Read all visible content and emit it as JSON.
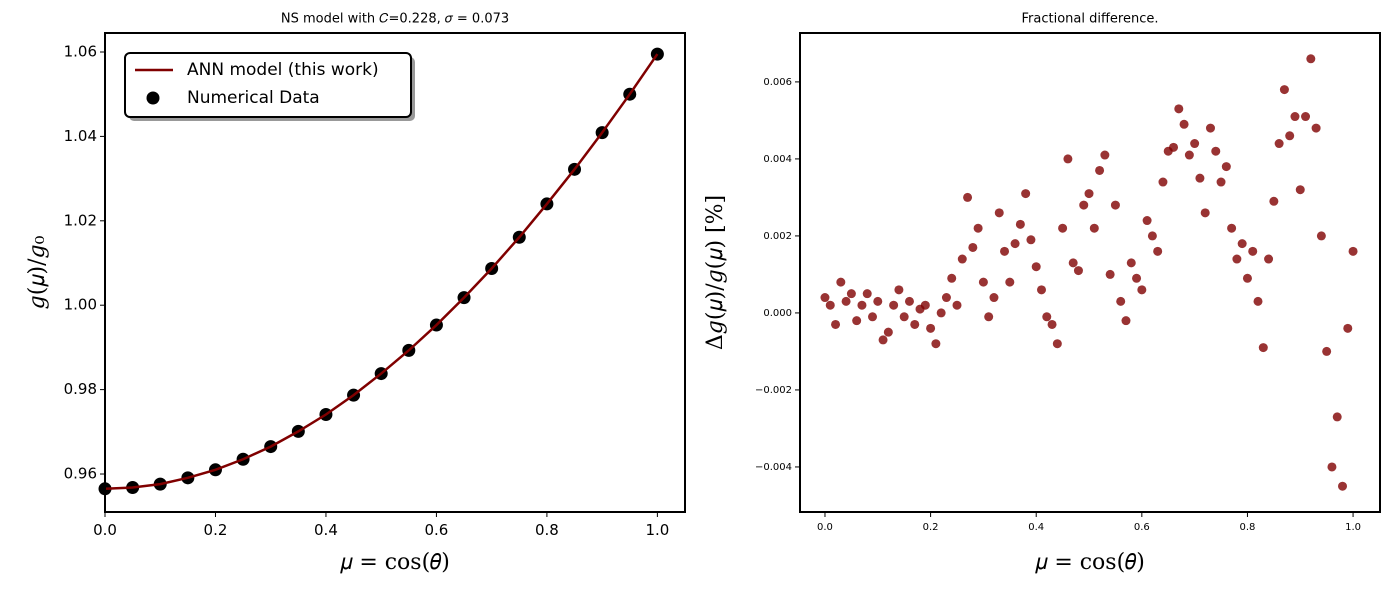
{
  "chart_data": [
    {
      "type": "line",
      "title": "NS model with 𝐶=0.228, 𝜎 = 0.073",
      "xlabel": "𝜇 = cos(𝜃)",
      "ylabel": "𝑔(𝜇)/𝑔₀",
      "legend": "upper left",
      "x": [
        0,
        0.05,
        0.1,
        0.15,
        0.2,
        0.25,
        0.3,
        0.35,
        0.4,
        0.45,
        0.5,
        0.55,
        0.6,
        0.65,
        0.7,
        0.75,
        0.8,
        0.85,
        0.9,
        0.95,
        1.0
      ],
      "series": [
        {
          "name": "ANN model (this work)",
          "type": "line",
          "color": "#800000",
          "values": [
            0.9565,
            0.9568,
            0.9576,
            0.9591,
            0.961,
            0.9635,
            0.9665,
            0.9701,
            0.9741,
            0.9787,
            0.9838,
            0.9893,
            0.9953,
            1.0018,
            1.0087,
            1.0161,
            1.024,
            1.0322,
            1.0409,
            1.05,
            1.0595
          ]
        },
        {
          "name": "Numerical Data",
          "type": "scatter",
          "color": "#000000",
          "values": [
            0.9565,
            0.9568,
            0.9576,
            0.9591,
            0.961,
            0.9635,
            0.9665,
            0.9701,
            0.9741,
            0.9787,
            0.9838,
            0.9893,
            0.9953,
            1.0018,
            1.0087,
            1.0161,
            1.024,
            1.0322,
            1.0409,
            1.05,
            1.0595
          ]
        }
      ],
      "xlim": [
        0,
        1.05
      ],
      "xticks": [
        {
          "value": 0,
          "label": "0.0"
        },
        {
          "value": 0.2,
          "label": "0.2"
        },
        {
          "value": 0.4,
          "label": "0.4"
        },
        {
          "value": 0.6,
          "label": "0.6"
        },
        {
          "value": 0.8,
          "label": "0.8"
        },
        {
          "value": 1,
          "label": "1.0"
        }
      ],
      "ylim": [
        0.951,
        1.0645
      ],
      "yticks": [
        0.96,
        0.98,
        {
          "value": 1,
          "label": "1.00"
        },
        1.02,
        1.04,
        1.06
      ]
    },
    {
      "type": "scatter",
      "title": "Fractional difference.",
      "xlabel": "𝜇 = cos(𝜃)",
      "ylabel": "Δ𝑔(𝜇)/𝑔(𝜇)  [%]",
      "color": "#800000",
      "x": [
        0,
        0.01,
        0.02,
        0.03,
        0.04,
        0.05,
        0.06,
        0.07,
        0.08,
        0.09,
        0.1,
        0.11,
        0.12,
        0.13,
        0.14,
        0.15,
        0.16,
        0.17,
        0.18,
        0.19,
        0.2,
        0.21,
        0.22,
        0.23,
        0.24,
        0.25,
        0.26,
        0.27,
        0.28,
        0.29,
        0.3,
        0.31,
        0.32,
        0.33,
        0.34,
        0.35,
        0.36,
        0.37,
        0.38,
        0.39,
        0.4,
        0.41,
        0.42,
        0.43,
        0.44,
        0.45,
        0.46,
        0.47,
        0.48,
        0.49,
        0.5,
        0.51,
        0.52,
        0.53,
        0.54,
        0.55,
        0.56,
        0.57,
        0.58,
        0.59,
        0.6,
        0.61,
        0.62,
        0.63,
        0.64,
        0.65,
        0.66,
        0.67,
        0.68,
        0.69,
        0.7,
        0.71,
        0.72,
        0.73,
        0.74,
        0.75,
        0.76,
        0.77,
        0.78,
        0.79,
        0.8,
        0.81,
        0.82,
        0.83,
        0.84,
        0.85,
        0.86,
        0.87,
        0.88,
        0.89,
        0.9,
        0.91,
        0.92,
        0.93,
        0.94,
        0.95,
        0.96,
        0.97,
        0.98,
        0.99,
        1.0
      ],
      "values": [
        0.0004,
        0.0002,
        -0.0003,
        0.0008,
        0.0003,
        0.0005,
        -0.0002,
        0.0002,
        0.0005,
        -0.0001,
        0.0003,
        -0.0007,
        -0.0005,
        0.0002,
        0.0006,
        -0.0001,
        0.0003,
        -0.0003,
        0.0001,
        0.0002,
        -0.0004,
        -0.0008,
        0.0,
        0.0004,
        0.0009,
        0.0002,
        0.0014,
        0.003,
        0.0017,
        0.0022,
        0.0008,
        -0.0001,
        0.0004,
        0.0026,
        0.0016,
        0.0008,
        0.0018,
        0.0023,
        0.0031,
        0.0019,
        0.0012,
        0.0006,
        -0.0001,
        -0.0003,
        -0.0008,
        0.0022,
        0.004,
        0.0013,
        0.0011,
        0.0028,
        0.0031,
        0.0022,
        0.0037,
        0.0041,
        0.001,
        0.0028,
        0.0003,
        -0.0002,
        0.0013,
        0.0009,
        0.0006,
        0.0024,
        0.002,
        0.0016,
        0.0034,
        0.0042,
        0.0043,
        0.0053,
        0.0049,
        0.0041,
        0.0044,
        0.0035,
        0.0026,
        0.0048,
        0.0042,
        0.0034,
        0.0038,
        0.0022,
        0.0014,
        0.0018,
        0.0009,
        0.0016,
        0.0003,
        -0.0009,
        0.0014,
        0.0029,
        0.0044,
        0.0058,
        0.0046,
        0.0051,
        0.0032,
        0.0051,
        0.0066,
        0.0048,
        0.002,
        -0.001,
        -0.004,
        -0.0027,
        -0.0045,
        -0.0004,
        0.0016
      ],
      "xlim": [
        -0.0473,
        1.051
      ],
      "xticks": [
        {
          "value": 0,
          "label": "0.0"
        },
        {
          "value": 0.2,
          "label": "0.2"
        },
        {
          "value": 0.4,
          "label": "0.4"
        },
        {
          "value": 0.6,
          "label": "0.6"
        },
        {
          "value": 0.8,
          "label": "0.8"
        },
        {
          "value": 1,
          "label": "1.0"
        }
      ],
      "ylim": [
        -0.00517,
        0.00727
      ],
      "yticks": [
        {
          "value": -0.004,
          "label": "−0.004"
        },
        {
          "value": -0.002,
          "label": "−0.002"
        },
        {
          "value": 0,
          "label": "0.000"
        },
        {
          "value": 0.002,
          "label": "0.002"
        },
        {
          "value": 0.004,
          "label": "0.004"
        },
        {
          "value": 0.006,
          "label": "0.006"
        }
      ]
    }
  ]
}
